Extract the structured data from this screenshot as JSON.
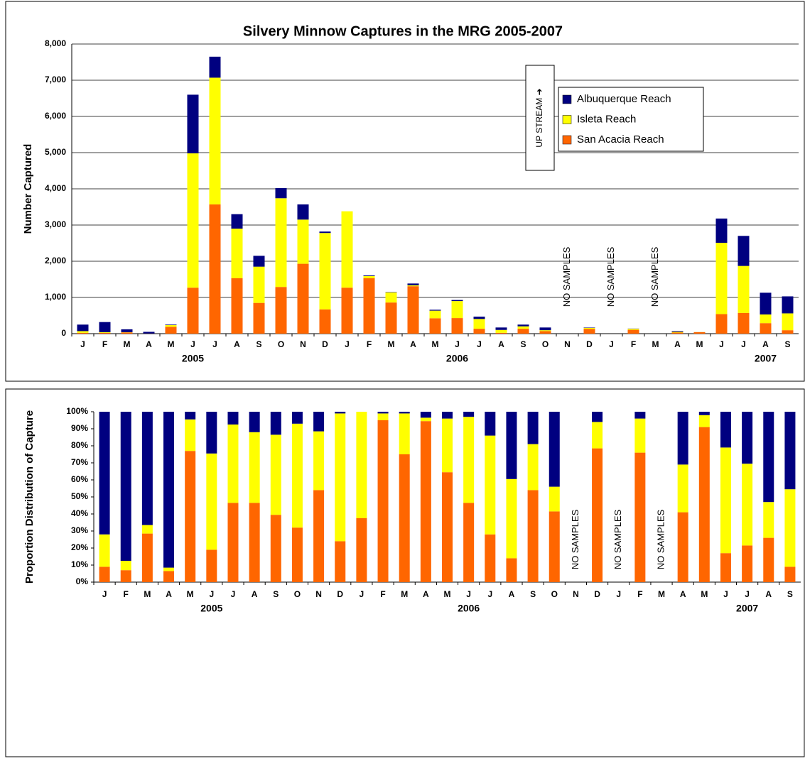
{
  "chart_data": [
    {
      "type": "bar",
      "stacked": true,
      "title": "Silvery Minnow Captures in the MRG 2005-2007",
      "y_label": "Number Captured",
      "categories": [
        "J",
        "F",
        "M",
        "A",
        "M",
        "J",
        "J",
        "A",
        "S",
        "O",
        "N",
        "D",
        "J",
        "F",
        "M",
        "A",
        "M",
        "J",
        "J",
        "A",
        "S",
        "O",
        "N",
        "D",
        "J",
        "F",
        "M",
        "A",
        "M",
        "J",
        "J",
        "A",
        "S"
      ],
      "year_labels": [
        "2005",
        "2006",
        "2007"
      ],
      "no_data_label": "NO SAMPLES",
      "direction_label": "UP STREAM ➜",
      "series": [
        {
          "name": "San Acacia Reach",
          "color": "#ff6600",
          "values": [
            22,
            22,
            34,
            3,
            190,
            1270,
            3570,
            1530,
            850,
            1290,
            1930,
            670,
            1270,
            1530,
            860,
            1310,
            425,
            430,
            135,
            23,
            135,
            70,
            null,
            134,
            null,
            106,
            null,
            29,
            41,
            540,
            570,
            290,
            95
          ]
        },
        {
          "name": "Isleta Reach",
          "color": "#ffff00",
          "values": [
            48,
            18,
            6,
            1,
            45,
            3710,
            3500,
            1370,
            1000,
            2450,
            1220,
            2110,
            2110,
            60,
            280,
            25,
            210,
            470,
            270,
            80,
            67,
            25,
            null,
            26,
            null,
            29,
            null,
            19,
            3,
            1970,
            1300,
            240,
            465
          ]
        },
        {
          "name": "Albuquerque Reach",
          "color": "#000080",
          "values": [
            180,
            280,
            80,
            46,
            15,
            1620,
            580,
            400,
            300,
            280,
            420,
            40,
            0,
            20,
            10,
            50,
            25,
            30,
            65,
            67,
            48,
            75,
            null,
            10,
            null,
            5,
            null,
            22,
            1,
            670,
            830,
            600,
            470
          ]
        }
      ],
      "ylim": [
        0,
        8000
      ],
      "yticks": [
        0,
        {
          "value": 1000,
          "label": "1,000"
        },
        {
          "value": 2000,
          "label": "2,000"
        },
        {
          "value": 3000,
          "label": "3,000"
        },
        {
          "value": 4000,
          "label": "4,000"
        },
        {
          "value": 5000,
          "label": "5,000"
        },
        {
          "value": 6000,
          "label": "6,000"
        },
        {
          "value": 7000,
          "label": "7,000"
        },
        {
          "value": 8000,
          "label": "8,000"
        }
      ],
      "grid": true,
      "legend": "upper right"
    },
    {
      "type": "bar",
      "stacked": true,
      "y_label": "Proportion Distribution of Capture",
      "categories": [
        "J",
        "F",
        "M",
        "A",
        "M",
        "J",
        "J",
        "A",
        "S",
        "O",
        "N",
        "D",
        "J",
        "F",
        "M",
        "A",
        "M",
        "J",
        "J",
        "A",
        "S",
        "O",
        "N",
        "D",
        "J",
        "F",
        "M",
        "A",
        "M",
        "J",
        "J",
        "A",
        "S"
      ],
      "year_labels": [
        "2005",
        "2006",
        "2007"
      ],
      "no_data_label": "NO SAMPLES",
      "series": [
        {
          "name": "San Acacia Reach",
          "color": "#ff6600",
          "values": [
            9,
            7,
            28.5,
            6.5,
            77,
            19,
            46.5,
            46.5,
            39.5,
            32,
            54,
            24,
            37.5,
            95,
            75,
            94.5,
            64.5,
            46.5,
            28,
            14,
            54,
            41.5,
            null,
            78.5,
            null,
            76,
            null,
            41,
            91,
            17,
            21.5,
            26,
            9
          ]
        },
        {
          "name": "Isleta Reach",
          "color": "#ffff00",
          "values": [
            19,
            5.5,
            5,
            2,
            18.5,
            56.5,
            46,
            41.5,
            47,
            61,
            34.5,
            75,
            62.5,
            4,
            24,
            2,
            31.5,
            50.5,
            58,
            46.5,
            27,
            14.5,
            null,
            15.5,
            null,
            20,
            null,
            28,
            7,
            62,
            48,
            21,
            45.5
          ]
        },
        {
          "name": "Albuquerque Reach",
          "color": "#000080",
          "values": [
            72,
            87.5,
            66.5,
            91.5,
            4.5,
            24.5,
            7.5,
            12,
            13.5,
            7,
            11.5,
            1,
            0,
            1,
            1,
            3.5,
            4,
            3,
            14,
            39.5,
            19,
            44,
            null,
            6,
            null,
            4,
            null,
            31,
            2,
            21,
            30.5,
            53,
            45.5
          ]
        }
      ],
      "ylim": [
        0,
        100
      ],
      "yticks": [
        {
          "value": 0,
          "label": "0%"
        },
        {
          "value": 10,
          "label": "10%"
        },
        {
          "value": 20,
          "label": "20%"
        },
        {
          "value": 30,
          "label": "30%"
        },
        {
          "value": 40,
          "label": "40%"
        },
        {
          "value": 50,
          "label": "50%"
        },
        {
          "value": 60,
          "label": "60%"
        },
        {
          "value": 70,
          "label": "70%"
        },
        {
          "value": 80,
          "label": "80%"
        },
        {
          "value": 90,
          "label": "90%"
        },
        {
          "value": 100,
          "label": "100%"
        }
      ],
      "grid": false
    }
  ]
}
